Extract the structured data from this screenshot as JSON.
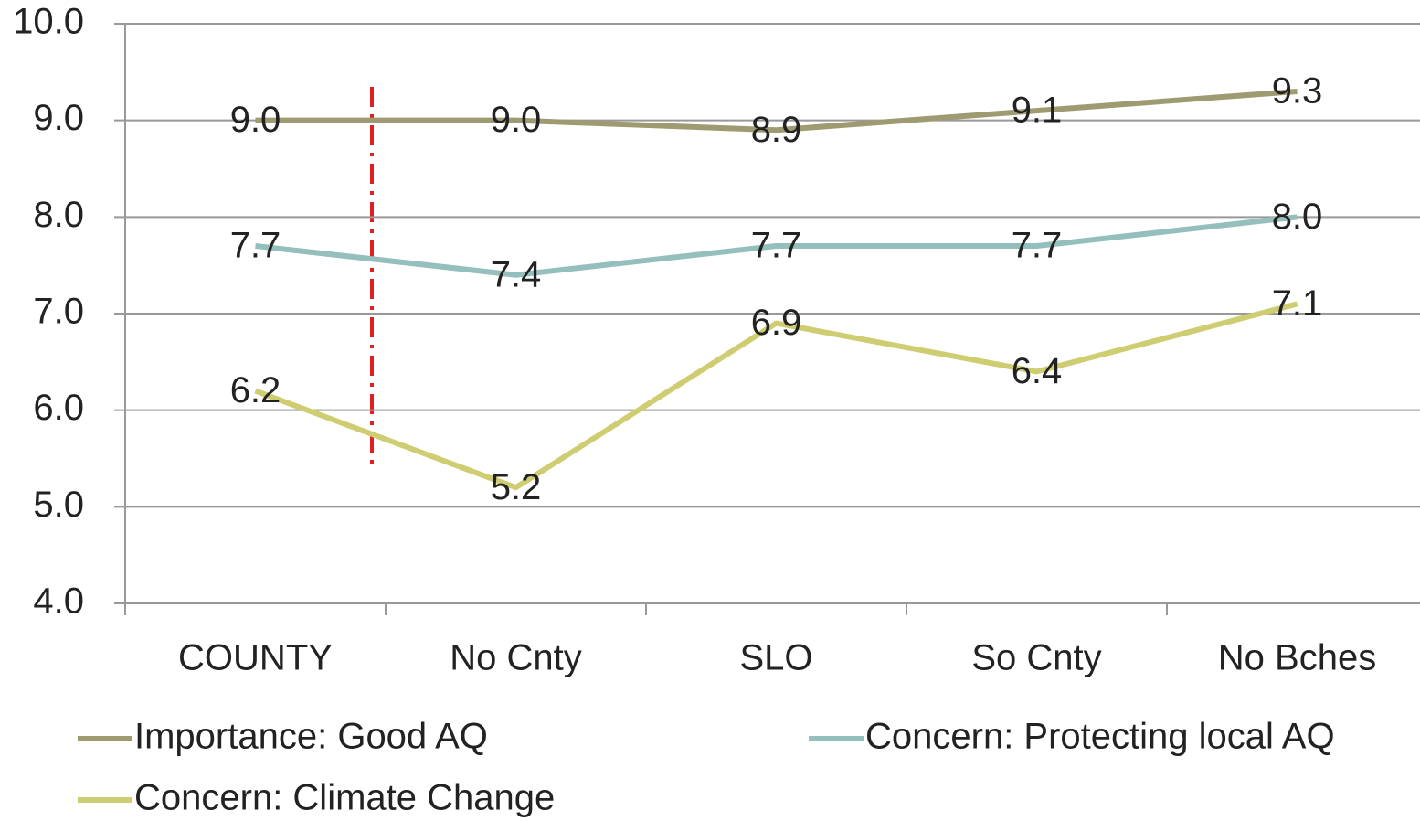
{
  "chart_data": {
    "type": "line",
    "categories": [
      "COUNTY",
      "No Cnty",
      "SLO",
      "So Cnty",
      "No Bches"
    ],
    "series": [
      {
        "name": "Importance:  Good AQ",
        "color": "#9e9b72",
        "values": [
          9.0,
          9.0,
          8.9,
          9.1,
          9.3
        ],
        "value_labels": [
          "9.0",
          "9.0",
          "8.9",
          "9.1",
          "9.3"
        ]
      },
      {
        "name": "Concern: Protecting local AQ",
        "color": "#95bfbd",
        "values": [
          7.7,
          7.4,
          7.7,
          7.7,
          8.0
        ],
        "value_labels": [
          "7.7",
          "7.4",
          "7.7",
          "7.7",
          "8.0"
        ]
      },
      {
        "name": "Concern: Climate Change",
        "color": "#cfcd72",
        "values": [
          6.2,
          5.2,
          6.9,
          6.4,
          7.1
        ],
        "value_labels": [
          "6.2",
          "5.2",
          "6.9",
          "6.4",
          "7.1"
        ]
      }
    ],
    "ylim": [
      4,
      10
    ],
    "yticks": [
      {
        "value": 4,
        "label": "4.0"
      },
      {
        "value": 5,
        "label": "5.0"
      },
      {
        "value": 6,
        "label": "6.0"
      },
      {
        "value": 7,
        "label": "7.0"
      },
      {
        "value": 8,
        "label": "8.0"
      },
      {
        "value": 9,
        "label": "9.0"
      },
      {
        "value": 10,
        "label": "10.0"
      }
    ],
    "grid": true
  }
}
